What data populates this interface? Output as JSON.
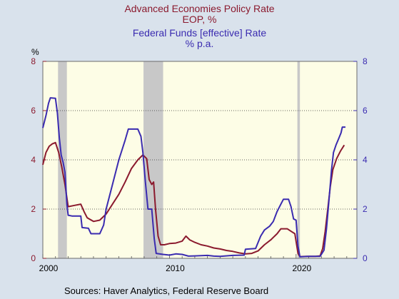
{
  "chart_data": {
    "type": "line",
    "title_lines": [
      {
        "text": "Advanced Economies Policy Rate",
        "color": "#8b1a2e"
      },
      {
        "text": "EOP, %",
        "color": "#8b1a2e"
      },
      {
        "text": "Federal Funds [effective] Rate",
        "color": "#3a2bb0"
      },
      {
        "text": "% p.a.",
        "color": "#3a2bb0"
      }
    ],
    "left_axis": {
      "unit_label": "%",
      "ticks": [
        "0",
        "2",
        "4",
        "6",
        "8"
      ],
      "color": "#8b1a2e",
      "ylim": [
        0,
        8
      ]
    },
    "right_axis": {
      "ticks": [
        "0",
        "2",
        "4",
        "6",
        "8"
      ],
      "color": "#3a2bb0",
      "ylim": [
        0,
        8
      ]
    },
    "x_axis": {
      "ticks": [
        "2000",
        "2010",
        "2020"
      ],
      "xlim": [
        2000,
        2024.8
      ]
    },
    "grid": {
      "horizontal_at": [
        2,
        4,
        6
      ],
      "style": "dotted"
    },
    "recessions": [
      [
        2001.2,
        2001.9
      ],
      [
        2007.95,
        2009.5
      ],
      [
        2020.1,
        2020.3
      ]
    ],
    "series": [
      {
        "color": "#8b1a2e",
        "axis": "left",
        "points": [
          [
            2000.0,
            3.8
          ],
          [
            2000.25,
            4.3
          ],
          [
            2000.5,
            4.55
          ],
          [
            2000.75,
            4.65
          ],
          [
            2001.0,
            4.7
          ],
          [
            2001.25,
            4.3
          ],
          [
            2001.5,
            3.7
          ],
          [
            2001.75,
            3.0
          ],
          [
            2002.0,
            2.1
          ],
          [
            2002.5,
            2.15
          ],
          [
            2003.0,
            2.2
          ],
          [
            2003.25,
            1.9
          ],
          [
            2003.5,
            1.65
          ],
          [
            2004.0,
            1.5
          ],
          [
            2004.5,
            1.55
          ],
          [
            2005.0,
            1.8
          ],
          [
            2005.5,
            2.2
          ],
          [
            2006.0,
            2.6
          ],
          [
            2006.5,
            3.1
          ],
          [
            2007.0,
            3.65
          ],
          [
            2007.5,
            4.0
          ],
          [
            2007.9,
            4.2
          ],
          [
            2008.2,
            4.05
          ],
          [
            2008.4,
            3.2
          ],
          [
            2008.6,
            3.0
          ],
          [
            2008.75,
            3.1
          ],
          [
            2008.9,
            2.0
          ],
          [
            2009.1,
            0.9
          ],
          [
            2009.3,
            0.55
          ],
          [
            2009.6,
            0.55
          ],
          [
            2010.0,
            0.6
          ],
          [
            2010.5,
            0.62
          ],
          [
            2011.0,
            0.7
          ],
          [
            2011.3,
            0.9
          ],
          [
            2011.6,
            0.75
          ],
          [
            2012.0,
            0.65
          ],
          [
            2012.5,
            0.55
          ],
          [
            2013.0,
            0.5
          ],
          [
            2013.5,
            0.42
          ],
          [
            2014.0,
            0.38
          ],
          [
            2014.5,
            0.32
          ],
          [
            2015.0,
            0.28
          ],
          [
            2015.5,
            0.22
          ],
          [
            2016.0,
            0.18
          ],
          [
            2016.5,
            0.2
          ],
          [
            2017.0,
            0.3
          ],
          [
            2017.5,
            0.55
          ],
          [
            2018.0,
            0.75
          ],
          [
            2018.5,
            1.0
          ],
          [
            2018.8,
            1.2
          ],
          [
            2019.3,
            1.2
          ],
          [
            2019.6,
            1.1
          ],
          [
            2019.9,
            1.0
          ],
          [
            2020.15,
            0.2
          ],
          [
            2020.3,
            0.07
          ],
          [
            2020.8,
            0.08
          ],
          [
            2021.5,
            0.08
          ],
          [
            2021.9,
            0.1
          ],
          [
            2022.1,
            0.4
          ],
          [
            2022.3,
            1.1
          ],
          [
            2022.5,
            2.0
          ],
          [
            2022.7,
            2.9
          ],
          [
            2022.9,
            3.6
          ],
          [
            2023.2,
            4.05
          ],
          [
            2023.5,
            4.35
          ],
          [
            2023.8,
            4.6
          ]
        ]
      },
      {
        "color": "#3a2bb0",
        "axis": "right",
        "points": [
          [
            2000.0,
            5.3
          ],
          [
            2000.25,
            5.8
          ],
          [
            2000.45,
            6.3
          ],
          [
            2000.6,
            6.52
          ],
          [
            2001.0,
            6.5
          ],
          [
            2001.15,
            5.9
          ],
          [
            2001.3,
            4.9
          ],
          [
            2001.45,
            4.2
          ],
          [
            2001.6,
            3.9
          ],
          [
            2001.75,
            3.5
          ],
          [
            2001.9,
            2.2
          ],
          [
            2002.0,
            1.75
          ],
          [
            2002.3,
            1.72
          ],
          [
            2003.0,
            1.72
          ],
          [
            2003.1,
            1.25
          ],
          [
            2003.6,
            1.22
          ],
          [
            2003.8,
            1.0
          ],
          [
            2004.5,
            1.0
          ],
          [
            2004.8,
            1.35
          ],
          [
            2005.0,
            2.0
          ],
          [
            2005.5,
            3.0
          ],
          [
            2006.0,
            4.0
          ],
          [
            2006.5,
            4.8
          ],
          [
            2006.75,
            5.25
          ],
          [
            2007.5,
            5.25
          ],
          [
            2007.75,
            4.95
          ],
          [
            2007.9,
            4.3
          ],
          [
            2008.1,
            3.1
          ],
          [
            2008.3,
            2.0
          ],
          [
            2008.6,
            2.0
          ],
          [
            2008.8,
            0.8
          ],
          [
            2008.95,
            0.2
          ],
          [
            2009.5,
            0.16
          ],
          [
            2010.0,
            0.13
          ],
          [
            2010.5,
            0.18
          ],
          [
            2011.0,
            0.16
          ],
          [
            2011.5,
            0.09
          ],
          [
            2012.0,
            0.1
          ],
          [
            2013.0,
            0.12
          ],
          [
            2013.5,
            0.09
          ],
          [
            2014.0,
            0.08
          ],
          [
            2015.0,
            0.12
          ],
          [
            2015.9,
            0.13
          ],
          [
            2016.0,
            0.37
          ],
          [
            2016.8,
            0.4
          ],
          [
            2017.2,
            0.9
          ],
          [
            2017.5,
            1.15
          ],
          [
            2017.9,
            1.3
          ],
          [
            2018.2,
            1.5
          ],
          [
            2018.5,
            1.9
          ],
          [
            2018.8,
            2.2
          ],
          [
            2019.0,
            2.4
          ],
          [
            2019.4,
            2.4
          ],
          [
            2019.6,
            2.1
          ],
          [
            2019.8,
            1.6
          ],
          [
            2020.0,
            1.55
          ],
          [
            2020.15,
            0.5
          ],
          [
            2020.3,
            0.06
          ],
          [
            2021.0,
            0.08
          ],
          [
            2021.9,
            0.08
          ],
          [
            2022.2,
            0.33
          ],
          [
            2022.4,
            1.2
          ],
          [
            2022.6,
            2.4
          ],
          [
            2022.8,
            3.6
          ],
          [
            2022.95,
            4.3
          ],
          [
            2023.15,
            4.6
          ],
          [
            2023.35,
            4.85
          ],
          [
            2023.55,
            5.1
          ],
          [
            2023.65,
            5.33
          ],
          [
            2023.9,
            5.33
          ]
        ]
      }
    ]
  },
  "footer": {
    "sources": "Sources:  Haver Analytics, Federal Reserve Board"
  }
}
